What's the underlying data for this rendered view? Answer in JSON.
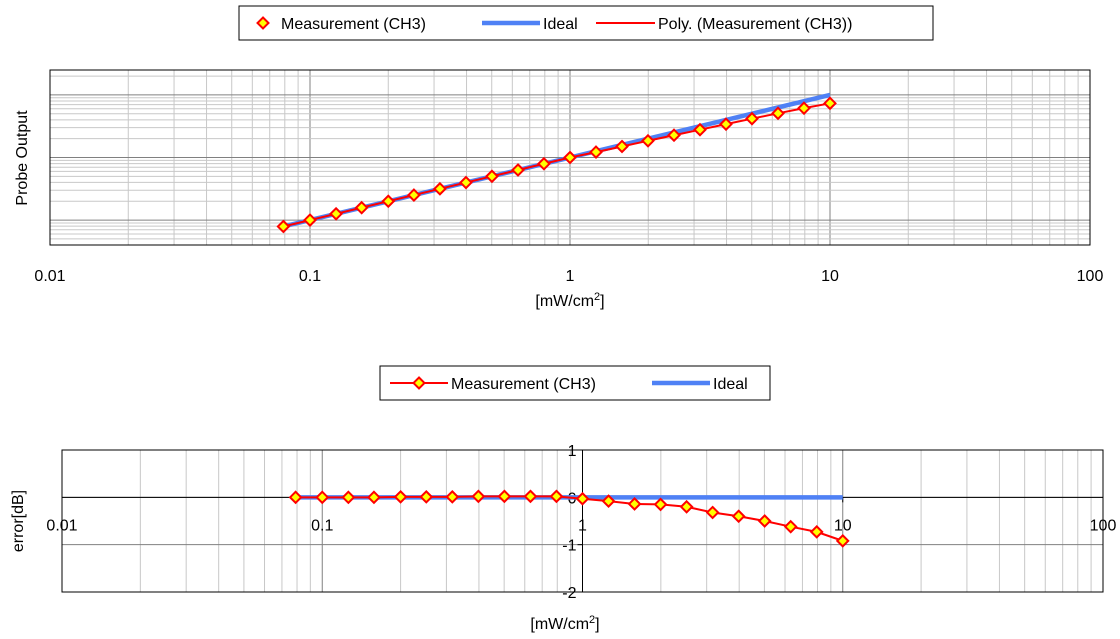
{
  "chart_data": [
    {
      "type": "scatter",
      "x_scale": "log",
      "y_scale": "log",
      "xlim": [
        0.01,
        100
      ],
      "xlabel": "[mW/cm",
      "xlabel_sup": "2",
      "xlabel_suffix": "]",
      "ylabel": "Probe Output",
      "y_tick_labels_shown": false,
      "grid": true,
      "legend_position": "top",
      "x_tick_labels": [
        "0.01",
        "0.1",
        "1",
        "10",
        "100"
      ],
      "legend": [
        "Measurement (CH3)",
        "Ideal",
        "Poly. (Measurement (CH3))"
      ],
      "x": [
        0.079,
        0.1,
        0.126,
        0.158,
        0.2,
        0.251,
        0.316,
        0.398,
        0.501,
        0.631,
        0.794,
        1.0,
        1.259,
        1.585,
        1.995,
        2.512,
        3.162,
        3.981,
        5.012,
        6.31,
        7.943,
        10.0
      ],
      "series": [
        {
          "name": "Measurement (CH3)",
          "style": "markers",
          "color": "#ff0000",
          "marker_fill": "#ffff00",
          "values": [
            0.079,
            0.1,
            0.126,
            0.158,
            0.2,
            0.251,
            0.316,
            0.398,
            0.501,
            0.631,
            0.794,
            1.0,
            1.22,
            1.5,
            1.85,
            2.27,
            2.78,
            3.41,
            4.17,
            5.08,
            6.14,
            7.34
          ]
        },
        {
          "name": "Ideal",
          "style": "line",
          "color": "#4f81f5",
          "values": [
            0.079,
            0.1,
            0.126,
            0.158,
            0.2,
            0.251,
            0.316,
            0.398,
            0.501,
            0.631,
            0.794,
            1.0,
            1.259,
            1.585,
            1.995,
            2.512,
            3.162,
            3.981,
            5.012,
            6.31,
            7.943,
            10.0
          ]
        },
        {
          "name": "Poly. (Measurement (CH3))",
          "style": "line",
          "color": "#ff0000",
          "values": [
            0.079,
            0.1,
            0.126,
            0.158,
            0.2,
            0.251,
            0.316,
            0.398,
            0.501,
            0.631,
            0.794,
            1.0,
            1.22,
            1.5,
            1.85,
            2.27,
            2.78,
            3.41,
            4.17,
            5.08,
            6.14,
            7.34
          ]
        }
      ]
    },
    {
      "type": "line",
      "x_scale": "log",
      "xlim": [
        0.01,
        100
      ],
      "ylim": [
        -2,
        1
      ],
      "xlabel": "[mW/cm",
      "xlabel_sup": "2",
      "xlabel_suffix": "]",
      "ylabel": "error[dB]",
      "grid": true,
      "legend_position": "top",
      "x_tick_labels": [
        "0.01",
        "0.1",
        "1",
        "10",
        "100"
      ],
      "y_tick_labels": [
        "1",
        "0",
        "-1",
        "-2"
      ],
      "y_ticks": [
        1,
        0,
        -1,
        -2
      ],
      "legend": [
        "Measurement (CH3)",
        "Ideal"
      ],
      "x": [
        0.079,
        0.1,
        0.126,
        0.158,
        0.2,
        0.251,
        0.316,
        0.398,
        0.501,
        0.631,
        0.794,
        1.0,
        1.259,
        1.585,
        1.995,
        2.512,
        3.162,
        3.981,
        5.012,
        6.31,
        7.943,
        10.0
      ],
      "series": [
        {
          "name": "Measurement (CH3)",
          "color": "#ff0000",
          "marker_fill": "#ffff00",
          "values": [
            0.0,
            0.0,
            0.0,
            0.0,
            0.01,
            0.01,
            0.01,
            0.02,
            0.02,
            0.02,
            0.02,
            -0.03,
            -0.08,
            -0.14,
            -0.15,
            -0.2,
            -0.32,
            -0.4,
            -0.5,
            -0.62,
            -0.73,
            -0.92
          ]
        },
        {
          "name": "Ideal",
          "color": "#4f81f5",
          "values": [
            0,
            0,
            0,
            0,
            0,
            0,
            0,
            0,
            0,
            0,
            0,
            0,
            0,
            0,
            0,
            0,
            0,
            0,
            0,
            0,
            0,
            0
          ]
        }
      ]
    }
  ]
}
